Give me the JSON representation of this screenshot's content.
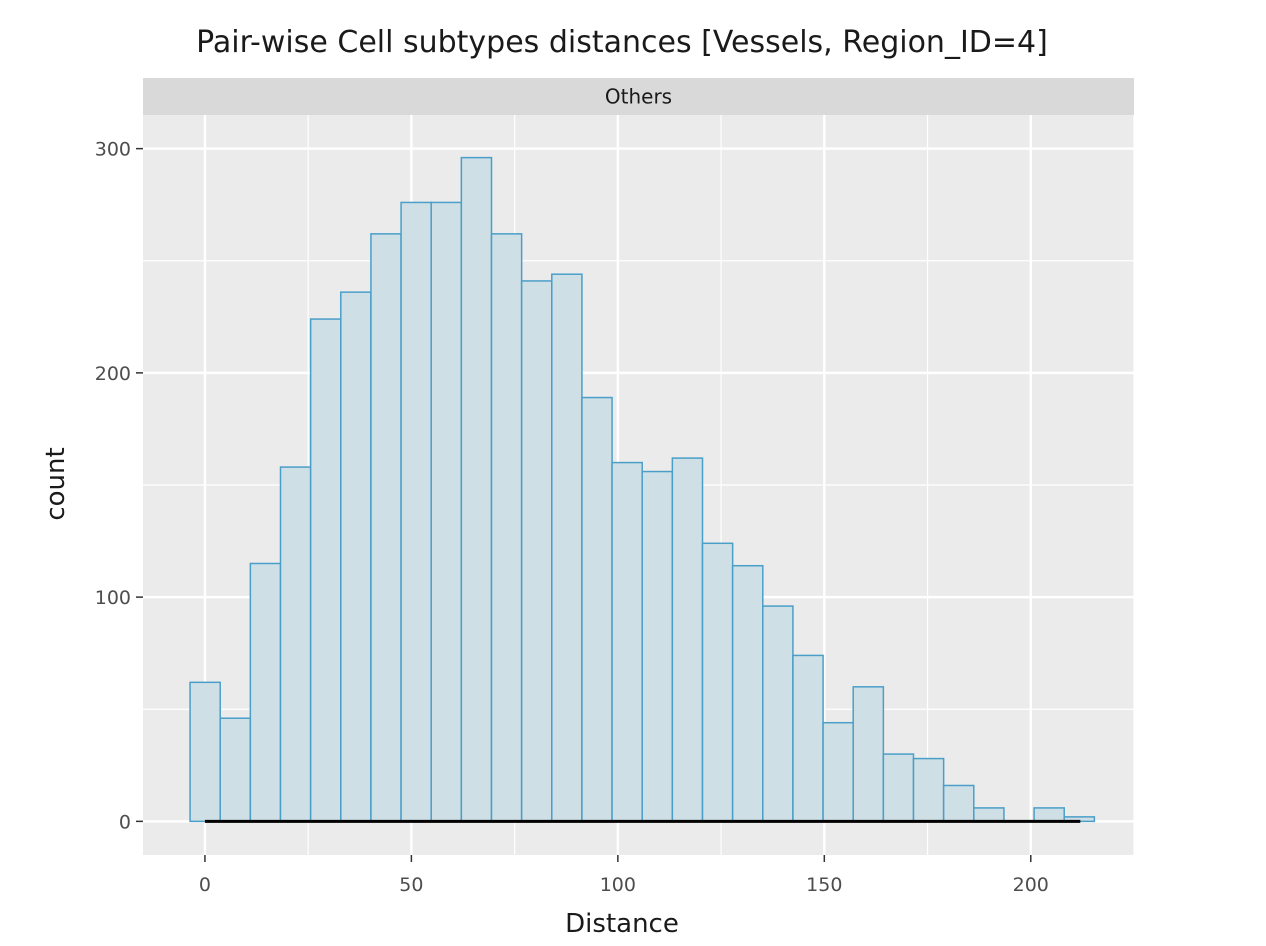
{
  "chart_data": {
    "type": "bar",
    "title": "Pair-wise Cell subtypes distances [Vessels, Region_ID=4]",
    "facet_label": "Others",
    "xlabel": "Distance",
    "ylabel": "count",
    "xlim": [
      -15,
      225
    ],
    "ylim": [
      -15,
      315
    ],
    "x_ticks": [
      0,
      50,
      100,
      150,
      200
    ],
    "y_ticks": [
      0,
      100,
      200,
      300
    ],
    "bins": {
      "start": -3.6,
      "width": 7.3,
      "counts": [
        62,
        46,
        115,
        158,
        224,
        236,
        262,
        276,
        276,
        296,
        262,
        241,
        244,
        189,
        160,
        156,
        162,
        124,
        114,
        96,
        74,
        44,
        60,
        30,
        28,
        16,
        6,
        0,
        6,
        2
      ]
    },
    "baseline_segment": [
      0,
      212
    ],
    "grid": true,
    "colors": {
      "panel_bg": "#ebebeb",
      "strip_bg": "#d9d9d9",
      "grid_major": "#ffffff",
      "bar_fill": "#cfdfe6",
      "bar_edge": "#4a9fc9",
      "segment": "#000000"
    }
  }
}
